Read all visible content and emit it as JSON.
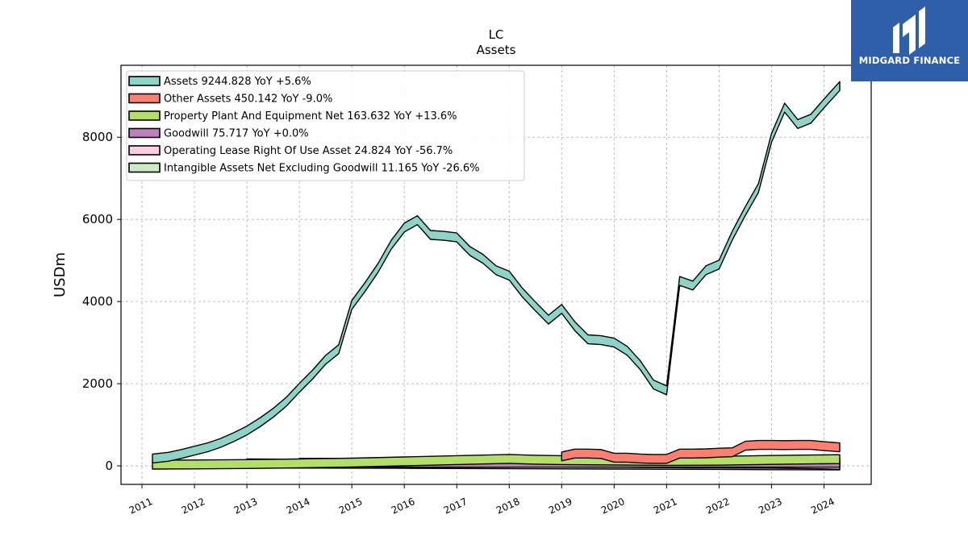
{
  "brand": {
    "name": "MIDGARD FINANCE",
    "color": "#2f5fa9"
  },
  "chart_data": {
    "type": "area",
    "title": "LC",
    "subtitle": "Assets",
    "ylabel": "USDm",
    "xlabel": "",
    "ylim": [
      -450,
      9750
    ],
    "yticks": [
      0,
      2000,
      4000,
      6000,
      8000
    ],
    "xlim": [
      2010.6,
      2024.9
    ],
    "xticks": [
      2011,
      2012,
      2013,
      2014,
      2015,
      2016,
      2017,
      2018,
      2019,
      2020,
      2021,
      2022,
      2023,
      2024
    ],
    "grid": true,
    "legend_position": "upper-left",
    "series": [
      {
        "name": "Assets",
        "legend": "Assets  9244.828 YoY +5.6%",
        "color": "#8dd3c7",
        "x": [
          2011.2,
          2011.5,
          2011.75,
          2012.0,
          2012.25,
          2012.5,
          2012.75,
          2013.0,
          2013.25,
          2013.5,
          2013.75,
          2014.0,
          2014.25,
          2014.5,
          2014.75,
          2015.0,
          2015.25,
          2015.5,
          2015.75,
          2016.0,
          2016.25,
          2016.5,
          2016.75,
          2017.0,
          2017.25,
          2017.5,
          2017.75,
          2018.0,
          2018.25,
          2018.5,
          2018.75,
          2019.0,
          2019.25,
          2019.5,
          2019.75,
          2020.0,
          2020.25,
          2020.5,
          2020.75,
          2021.0,
          2021.25,
          2021.5,
          2021.75,
          2022.0,
          2022.25,
          2022.5,
          2022.75,
          2023.0,
          2023.25,
          2023.5,
          2023.75,
          2024.0,
          2024.3
        ],
        "values": [
          180,
          220,
          290,
          370,
          450,
          560,
          700,
          860,
          1060,
          1290,
          1560,
          1900,
          2220,
          2580,
          2840,
          3920,
          4350,
          4820,
          5380,
          5800,
          5980,
          5620,
          5600,
          5560,
          5230,
          5040,
          4760,
          4630,
          4220,
          3880,
          3560,
          3820,
          3400,
          3080,
          3060,
          3000,
          2800,
          2450,
          1980,
          1840,
          4500,
          4390,
          4760,
          4900,
          5600,
          6200,
          6760,
          7980,
          8720,
          8320,
          8450,
          8820,
          9244.828
        ]
      },
      {
        "name": "Other Assets",
        "legend": "Other Assets  450.142 YoY -9.0%",
        "color": "#fb8072",
        "x": [
          2019.0,
          2019.25,
          2019.5,
          2019.75,
          2020.0,
          2020.25,
          2020.5,
          2020.75,
          2021.0,
          2021.25,
          2021.5,
          2021.75,
          2022.0,
          2022.25,
          2022.5,
          2022.75,
          2023.0,
          2023.25,
          2023.5,
          2023.75,
          2024.0,
          2024.3
        ],
        "values": [
          230,
          300,
          300,
          290,
          200,
          200,
          180,
          170,
          170,
          300,
          300,
          305,
          320,
          330,
          490,
          510,
          510,
          505,
          510,
          510,
          480,
          450.142
        ]
      },
      {
        "name": "Property Plant And Equipment Net",
        "legend": "Property Plant And Equipment Net  163.632 YoY +13.6%",
        "color": "#b3de69",
        "x": [
          2011.2,
          2012.0,
          2013.0,
          2014.0,
          2015.0,
          2016.0,
          2017.0,
          2018.0,
          2018.5,
          2019.0,
          2020.0,
          2021.0,
          2022.0,
          2023.0,
          2024.3
        ],
        "values": [
          30,
          35,
          45,
          60,
          80,
          110,
          140,
          170,
          150,
          140,
          130,
          120,
          125,
          145,
          163.632
        ]
      },
      {
        "name": "Goodwill",
        "legend": "Goodwill  75.717 YoY +0.0%",
        "color": "#bc80bd",
        "x": [
          2014.0,
          2014.5,
          2016.0,
          2016.5,
          2018.0,
          2020.0,
          2022.0,
          2024.3
        ],
        "values": [
          75.717,
          75.717,
          75.717,
          75.717,
          75.717,
          75.717,
          75.717,
          75.717
        ]
      },
      {
        "name": "Operating Lease Right Of Use Asset",
        "legend": "Operating Lease Right Of Use Asset  24.824 YoY -56.7%",
        "color": "#fccde5",
        "x": [
          2019.0,
          2019.5,
          2020.0,
          2020.5,
          2021.0,
          2021.5,
          2022.0,
          2022.5,
          2023.0,
          2023.5,
          2024.0,
          2024.3
        ],
        "values": [
          85,
          80,
          78,
          70,
          65,
          60,
          58,
          55,
          52,
          45,
          35,
          24.824
        ]
      },
      {
        "name": "Intangible Assets Net Excluding Goodwill",
        "legend": "Intangible Assets Net Excluding Goodwill  11.165 YoY -26.6%",
        "color": "#ccebc5",
        "x": [
          2013.0,
          2014.0,
          2016.0,
          2018.0,
          2020.0,
          2022.0,
          2023.0,
          2024.3
        ],
        "values": [
          60,
          55,
          48,
          40,
          30,
          22,
          15,
          11.165
        ]
      }
    ]
  }
}
